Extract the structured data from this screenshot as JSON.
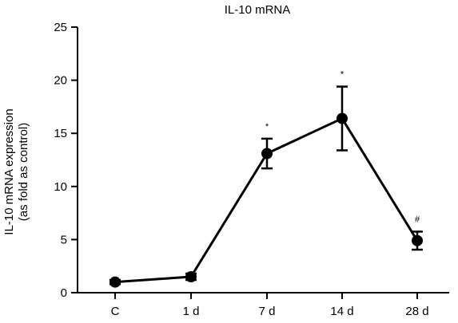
{
  "chart_data": {
    "type": "line",
    "title": "IL-10 mRNA",
    "ylabel_lines": [
      "IL-10 mRNA expression",
      "(as fold as control)"
    ],
    "xlabel": "",
    "categories": [
      "C",
      "1 d",
      "7 d",
      "14 d",
      "28 d"
    ],
    "y_ticks": [
      "0",
      "5",
      "10",
      "15",
      "20",
      "25"
    ],
    "ylim": [
      0,
      25
    ],
    "grid": false,
    "legend": "none",
    "series": [
      {
        "values": [
          1.0,
          1.5,
          13.1,
          16.4,
          4.9
        ],
        "error": [
          0.2,
          0.3,
          1.4,
          3.0,
          0.85
        ]
      }
    ],
    "annotations": [
      "",
      "",
      "*",
      "*",
      "#"
    ],
    "line_color": "#000000"
  }
}
